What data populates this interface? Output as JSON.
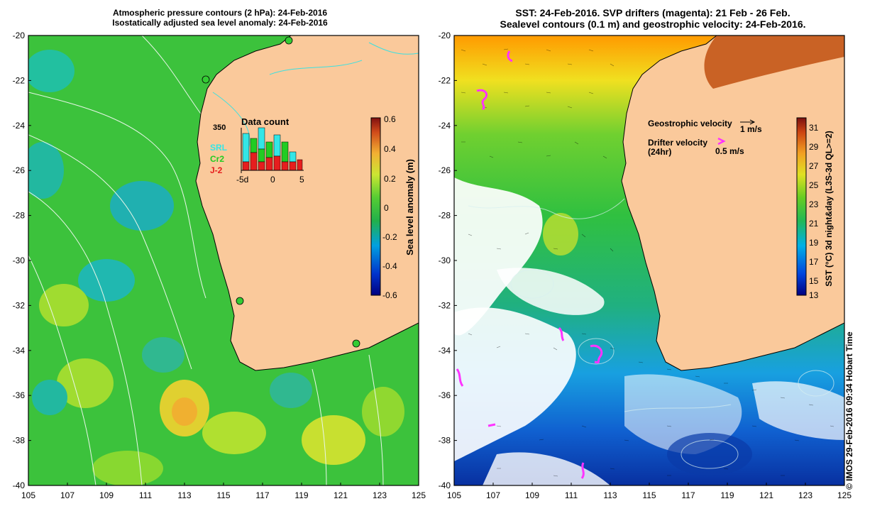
{
  "left_panel": {
    "title_line1": "Atmospheric pressure contours (2 hPa): 24-Feb-2016",
    "title_line2": "Isostatically adjusted sea level anomaly: 24-Feb-2016",
    "colorbar": {
      "label": "Sea level anomaly (m)",
      "ticks": [
        "0.6",
        "0.4",
        "0.2",
        "0",
        "-0.2",
        "-0.4",
        "-0.6"
      ]
    },
    "inset": {
      "title": "Data count",
      "ymax_label": "350",
      "legend": [
        {
          "name": "SRL",
          "color": "#33e6e6"
        },
        {
          "name": "Cr2",
          "color": "#22cc22"
        },
        {
          "name": "J-2",
          "color": "#e61e1e"
        }
      ],
      "x_ticks": [
        "-5d",
        "0",
        "5"
      ]
    }
  },
  "right_panel": {
    "title_line1": "SST: 24-Feb-2016. SVP drifters (magenta): 21 Feb - 26 Feb.",
    "title_line2": "Sealevel contours (0.1 m) and geostrophic velocity: 24-Feb-2016.",
    "legend": {
      "geo_label": "Geostrophic velocity",
      "geo_scale": "1 m/s",
      "drifter_label": "Drifter velocity",
      "drifter_sub": "(24hr)",
      "drifter_scale": "0.5 m/s"
    },
    "colorbar": {
      "label": "SST (°C) 3d night&day (L3S-3d QL>=2)",
      "ticks": [
        "31",
        "29",
        "27",
        "25",
        "23",
        "21",
        "19",
        "17",
        "15",
        "13"
      ]
    }
  },
  "axes": {
    "y_ticks": [
      "-20",
      "-22",
      "-24",
      "-26",
      "-28",
      "-30",
      "-32",
      "-34",
      "-36",
      "-38",
      "-40"
    ],
    "x_ticks": [
      "105",
      "107",
      "109",
      "111",
      "113",
      "115",
      "117",
      "119",
      "121",
      "123",
      "125"
    ]
  },
  "credit": "© IMOS 29-Feb-2016 09:34 Hobart Time",
  "colors": {
    "land": "#fac99b",
    "drifter": "#ff33ff",
    "coast": "#000000"
  }
}
